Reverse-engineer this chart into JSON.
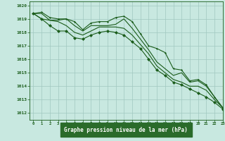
{
  "xlabel": "Graphe pression niveau de la mer (hPa)",
  "xlim": [
    -0.5,
    23
  ],
  "ylim": [
    1011.5,
    1020.3
  ],
  "yticks": [
    1012,
    1013,
    1014,
    1015,
    1016,
    1017,
    1018,
    1019,
    1020
  ],
  "xticks": [
    0,
    1,
    2,
    3,
    4,
    5,
    6,
    7,
    8,
    9,
    10,
    11,
    12,
    13,
    14,
    15,
    16,
    17,
    18,
    19,
    20,
    21,
    22,
    23
  ],
  "bg_color": "#c8e8e0",
  "grid_color": "#a0c8c0",
  "line_color": "#1a5c1a",
  "label_bg": "#2a6b2a",
  "label_fg": "#ffffff",
  "series": [
    [
      1019.4,
      1019.5,
      1019.1,
      1019.0,
      1019.0,
      1018.8,
      1018.2,
      1018.7,
      1018.8,
      1018.8,
      1019.1,
      1019.2,
      1018.8,
      1017.9,
      1017.0,
      1016.8,
      1016.5,
      1015.3,
      1015.2,
      1014.4,
      1014.5,
      1014.1,
      1013.2,
      1012.4
    ],
    [
      1019.4,
      1019.4,
      1018.9,
      1018.9,
      1019.0,
      1018.5,
      1018.1,
      1018.5,
      1018.5,
      1018.5,
      1018.6,
      1019.0,
      1018.3,
      1017.5,
      1016.7,
      1015.8,
      1015.3,
      1014.8,
      1015.0,
      1014.3,
      1014.4,
      1014.0,
      1013.2,
      1012.4
    ],
    [
      1019.4,
      1019.0,
      1018.9,
      1018.8,
      1018.5,
      1018.0,
      1017.8,
      1018.1,
      1018.4,
      1018.4,
      1018.4,
      1018.3,
      1017.8,
      1017.1,
      1016.4,
      1015.5,
      1015.0,
      1014.5,
      1014.3,
      1014.0,
      1014.0,
      1013.7,
      1013.0,
      1012.4
    ],
    [
      1019.4,
      1019.0,
      1018.5,
      1018.1,
      1018.1,
      1017.6,
      1017.5,
      1017.8,
      1018.0,
      1018.1,
      1018.0,
      1017.8,
      1017.3,
      1016.8,
      1016.0,
      1015.2,
      1014.8,
      1014.3,
      1014.1,
      1013.8,
      1013.5,
      1013.2,
      1012.8,
      1012.3
    ]
  ]
}
